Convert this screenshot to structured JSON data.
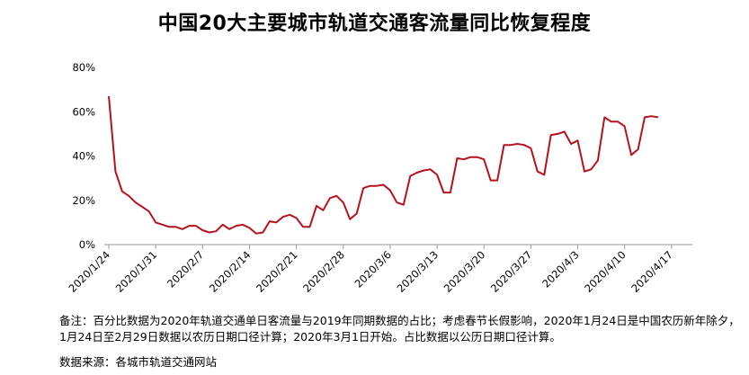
{
  "title": "中国20大主要城市轨道交通客流量同比恢复程度",
  "note": "备注：百分比数据为2020年轨道交通单日客流量与2019年同期数据的占比；考虑春节长假影响，2020年1月24日是中国农历新年除夕，1月24日至2月29日数据以农历日期口径计算；2020年3月1日开始。占比数据以公历日期口径计算。",
  "source": "数据来源：各城市轨道交通网站",
  "chart_data": {
    "type": "line",
    "title": "中国20大主要城市轨道交通客流量同比恢复程度",
    "xlabel": "",
    "ylabel": "",
    "ylim": [
      0,
      80
    ],
    "yticks": [
      "0%",
      "20%",
      "40%",
      "60%",
      "80%"
    ],
    "xticks": [
      "2020/1/24",
      "2020/1/31",
      "2020/2/7",
      "2020/2/14",
      "2020/2/21",
      "2020/2/28",
      "2020/3/6",
      "2020/3/13",
      "2020/3/20",
      "2020/3/27",
      "2020/4/3",
      "2020/4/10",
      "2020/4/17"
    ],
    "grid": false,
    "legend": "none",
    "line_color": "#b5121b",
    "x": [
      "2020/1/24",
      "2020/1/25",
      "2020/1/26",
      "2020/1/27",
      "2020/1/28",
      "2020/1/29",
      "2020/1/30",
      "2020/1/31",
      "2020/2/1",
      "2020/2/2",
      "2020/2/3",
      "2020/2/4",
      "2020/2/5",
      "2020/2/6",
      "2020/2/7",
      "2020/2/8",
      "2020/2/9",
      "2020/2/10",
      "2020/2/11",
      "2020/2/12",
      "2020/2/13",
      "2020/2/14",
      "2020/2/15",
      "2020/2/16",
      "2020/2/17",
      "2020/2/18",
      "2020/2/19",
      "2020/2/20",
      "2020/2/21",
      "2020/2/22",
      "2020/2/23",
      "2020/2/24",
      "2020/2/25",
      "2020/2/26",
      "2020/2/27",
      "2020/2/28",
      "2020/2/29",
      "2020/3/1",
      "2020/3/2",
      "2020/3/3",
      "2020/3/4",
      "2020/3/5",
      "2020/3/6",
      "2020/3/7",
      "2020/3/8",
      "2020/3/9",
      "2020/3/10",
      "2020/3/11",
      "2020/3/12",
      "2020/3/13",
      "2020/3/14",
      "2020/3/15",
      "2020/3/16",
      "2020/3/17",
      "2020/3/18",
      "2020/3/19",
      "2020/3/20",
      "2020/3/21",
      "2020/3/22",
      "2020/3/23",
      "2020/3/24",
      "2020/3/25",
      "2020/3/26",
      "2020/3/27",
      "2020/3/28",
      "2020/3/29",
      "2020/3/30",
      "2020/3/31",
      "2020/4/1",
      "2020/4/2",
      "2020/4/3",
      "2020/4/4",
      "2020/4/5",
      "2020/4/6",
      "2020/4/7",
      "2020/4/8",
      "2020/4/9",
      "2020/4/10",
      "2020/4/11",
      "2020/4/12",
      "2020/4/13",
      "2020/4/14",
      "2020/4/15"
    ],
    "values": [
      67,
      33,
      24,
      22,
      19,
      17,
      15,
      10,
      9,
      8,
      8,
      7,
      8.5,
      8.5,
      6.5,
      5.5,
      6,
      9,
      7,
      8.5,
      9,
      7.5,
      5,
      5.5,
      10.5,
      10,
      12.5,
      13.5,
      12,
      8,
      8,
      17.5,
      15.5,
      21,
      22,
      19,
      11.5,
      14,
      25.5,
      26.5,
      26.5,
      27,
      24.5,
      19,
      18,
      31,
      32.5,
      33.5,
      34,
      31.5,
      23.5,
      23.5,
      39,
      38.5,
      39.5,
      39.5,
      38.5,
      29,
      29,
      45,
      45,
      45.5,
      45,
      43.5,
      33,
      31.5,
      49.5,
      50,
      51,
      45.5,
      47,
      33,
      34,
      38,
      57.5,
      55.5,
      55.5,
      53.5,
      40.5,
      43,
      57.5,
      58,
      57.5
    ]
  }
}
